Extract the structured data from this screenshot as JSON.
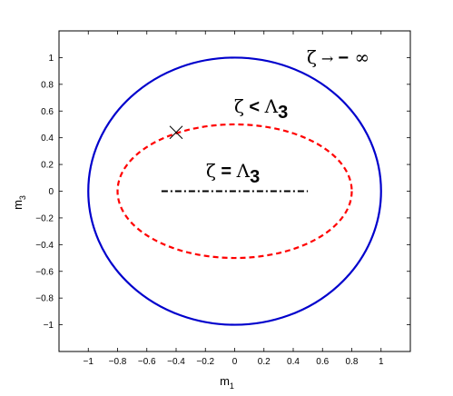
{
  "chart_data": {
    "type": "line",
    "xlabel": "m",
    "xlabel_sub": "1",
    "ylabel": "m",
    "ylabel_sub": "3",
    "xlim": [
      -1.2,
      1.2
    ],
    "ylim": [
      -1.2,
      1.2
    ],
    "xticks": [
      -1,
      -0.8,
      -0.6,
      -0.4,
      -0.2,
      0,
      0.2,
      0.4,
      0.6,
      0.8,
      1
    ],
    "xtick_labels": [
      "−1",
      "−0.8",
      "−0.6",
      "−0.4",
      "−0.2",
      "0",
      "0.2",
      "0.4",
      "0.6",
      "0.8",
      "1"
    ],
    "yticks": [
      1,
      0.8,
      0.6,
      0.4,
      0.2,
      0,
      -0.2,
      -0.4,
      -0.6,
      -0.8,
      -1
    ],
    "ytick_labels": [
      "1",
      "0.8",
      "0.6",
      "0.4",
      "0.2",
      "0",
      "−0.2",
      "−0.4",
      "−0.6",
      "−0.8",
      "−1"
    ],
    "grid": false,
    "series": [
      {
        "kind": "ellipse",
        "cx": 0,
        "cy": 0,
        "rx": 1.0,
        "ry": 1.0,
        "color": "#0000cc",
        "style": "solid"
      },
      {
        "kind": "ellipse",
        "cx": 0,
        "cy": 0,
        "rx": 0.8,
        "ry": 0.5,
        "color": "#ff0000",
        "style": "dashed"
      },
      {
        "kind": "segment",
        "x": [
          -0.5,
          0.5
        ],
        "y": [
          0,
          0
        ],
        "color": "#000000",
        "style": "dashdot"
      }
    ],
    "marker": {
      "symbol": "x",
      "x": -0.4,
      "y": 0.44,
      "color": "#000000"
    },
    "annotations": [
      {
        "text_parts": [
          "ζ",
          " → ",
          "−",
          " ∞"
        ],
        "x": 0.9,
        "y": 1.02
      },
      {
        "text_parts": [
          "ζ",
          " < ",
          "Λ",
          "3"
        ],
        "x": 0.37,
        "y": 0.57
      },
      {
        "text_parts": [
          "ζ",
          " = ",
          "Λ",
          "3"
        ],
        "x": 0.05,
        "y": 0.08
      }
    ]
  }
}
